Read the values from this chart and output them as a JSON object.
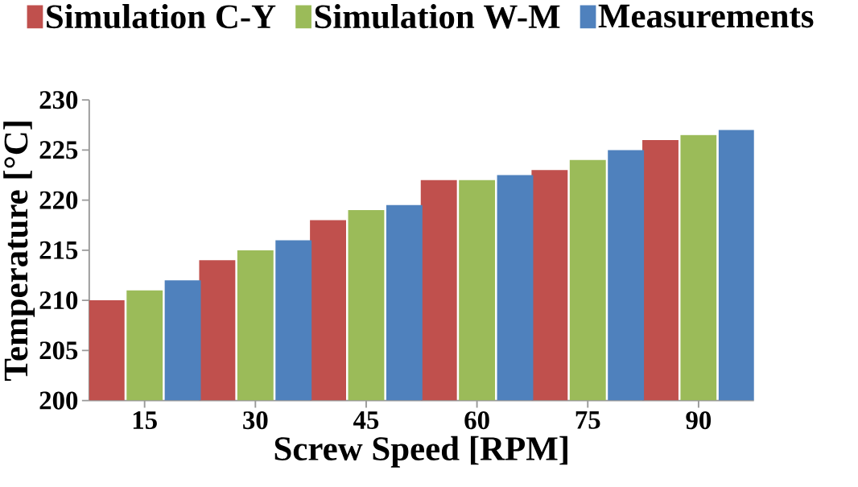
{
  "chart_data": {
    "type": "bar",
    "xlabel": "Screw Speed [RPM]",
    "ylabel": "Temperature [°C]",
    "categories": [
      "15",
      "30",
      "45",
      "60",
      "75",
      "90"
    ],
    "series": [
      {
        "name": "Simulation C-Y",
        "color": "#c0504d",
        "values": [
          210,
          214,
          218,
          222,
          223,
          226
        ]
      },
      {
        "name": "Simulation W-M",
        "color": "#9bbb59",
        "values": [
          211,
          215,
          219,
          222,
          224,
          226.5
        ]
      },
      {
        "name": "Measurements",
        "color": "#4f81bd",
        "values": [
          212,
          216,
          219.5,
          222.5,
          225,
          227
        ]
      }
    ],
    "ylim": [
      200,
      230
    ],
    "yticks": [
      200,
      205,
      210,
      215,
      220,
      225,
      230
    ],
    "grid": false,
    "legend": "top"
  }
}
